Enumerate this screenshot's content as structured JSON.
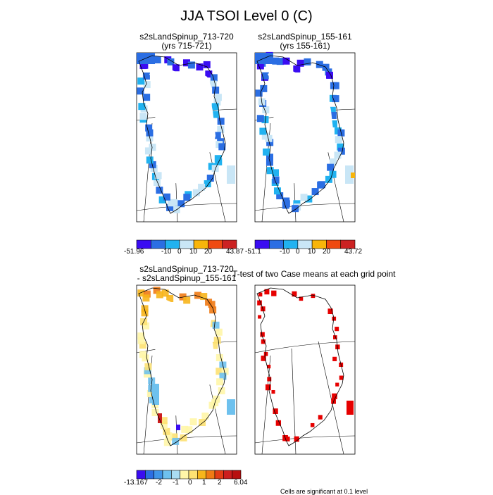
{
  "main_title": "JJA TSOI Level 0 (C)",
  "panels": [
    {
      "id": "p1",
      "title_line1": "s2sLandSpinup_713-720",
      "title_line2": "(yrs 715-721)",
      "colorbar": {
        "min_label": "-51.96",
        "ticks": [
          "-10",
          "0",
          "10",
          "20"
        ],
        "max_label": "43.87"
      }
    },
    {
      "id": "p2",
      "title_line1": "s2sLandSpinup_155-161",
      "title_line2": "(yrs 155-161)",
      "colorbar": {
        "min_label": "-51.1",
        "ticks": [
          "-10",
          "0",
          "10",
          "20"
        ],
        "max_label": "43.72"
      }
    },
    {
      "id": "p3",
      "title_line1": "s2sLandSpinup_713-720",
      "title_line2": "- s2sLandSpinup_155-161",
      "colorbar": {
        "min_label": "-13.167",
        "ticks": [
          "-2",
          "-1",
          "0",
          "1",
          "2"
        ],
        "max_label": "6.04"
      }
    },
    {
      "id": "p4",
      "title_line1": "T-test of two Case means at each grid point",
      "footnote": "Cells are significant at 0.1 level"
    }
  ],
  "colors": {
    "abs_scale": [
      "#3a0cf2",
      "#2b6ee3",
      "#21b2f0",
      "#c9e6f6",
      "#f8b50a",
      "#ef4a11",
      "#cc2222"
    ],
    "diff_scale": [
      "#3a0cf2",
      "#2b6ee3",
      "#3f95e8",
      "#6ec1ee",
      "#a9dcf3",
      "#fff6a8",
      "#fde172",
      "#f7b51b",
      "#ef7a14",
      "#e23c14",
      "#cc1d1d",
      "#b80f0f"
    ],
    "significant": "#e60000"
  }
}
